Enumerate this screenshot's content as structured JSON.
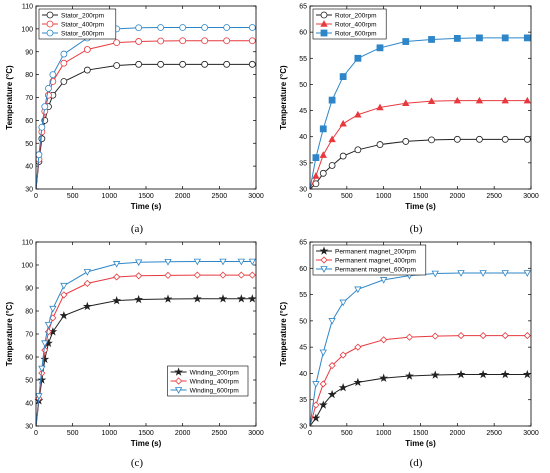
{
  "colors": {
    "s200": "#222222",
    "s400": "#e8393e",
    "s600": "#2e86c8"
  },
  "chart_data": [
    {
      "type": "line",
      "caption": "(a)",
      "xlabel": "Time (s)",
      "ylabel": "Temperature (°C)",
      "xlim": [
        0,
        3000
      ],
      "ylim": [
        30,
        110
      ],
      "xticks": [
        0,
        500,
        1000,
        1500,
        2000,
        2500,
        3000
      ],
      "yticks": [
        30,
        40,
        50,
        60,
        70,
        80,
        90,
        100,
        110
      ],
      "legend": "top-left",
      "marker": "circle",
      "series": [
        {
          "name": "Stator_200rpm",
          "values": [
            30,
            42,
            52,
            60,
            66,
            71,
            77,
            82,
            84,
            84.5,
            84.5,
            84.5,
            84.5,
            84.5,
            84.5
          ]
        },
        {
          "name": "Stator_400rpm",
          "values": [
            30,
            43,
            55,
            64,
            71,
            77,
            85,
            91,
            94,
            94.5,
            94.7,
            94.8,
            94.8,
            94.8,
            94.8
          ]
        },
        {
          "name": "Stator_600rpm",
          "values": [
            30,
            45,
            57,
            66,
            74,
            80,
            89,
            96,
            100,
            100.5,
            100.6,
            100.6,
            100.6,
            100.6,
            100.6
          ]
        }
      ],
      "x": [
        0,
        40,
        80,
        120,
        170,
        230,
        380,
        700,
        1100,
        1400,
        1700,
        2000,
        2300,
        2600,
        2950
      ]
    },
    {
      "type": "line",
      "caption": "(b)",
      "xlabel": "Time (s)",
      "ylabel": "Temperature (°C)",
      "xlim": [
        0,
        3000
      ],
      "ylim": [
        30,
        65
      ],
      "xticks": [
        0,
        500,
        1000,
        1500,
        2000,
        2500,
        3000
      ],
      "yticks": [
        30,
        35,
        40,
        45,
        50,
        55,
        60,
        65
      ],
      "legend": "top-left",
      "marker": "mixed",
      "series": [
        {
          "name": "Rotor_200rpm",
          "marker": "circle",
          "values": [
            30,
            31,
            33,
            34.5,
            36.3,
            37.5,
            38.5,
            39.1,
            39.4,
            39.5,
            39.5,
            39.5,
            39.5
          ]
        },
        {
          "name": "Rotor_400rpm",
          "marker": "triangle",
          "values": [
            30,
            32.5,
            36.5,
            39.5,
            42.5,
            44.2,
            45.6,
            46.4,
            46.8,
            46.9,
            46.9,
            46.9,
            46.9
          ]
        },
        {
          "name": "Rotor_600rpm",
          "marker": "square",
          "values": [
            30,
            36,
            41.5,
            47,
            51.5,
            55,
            57,
            58.2,
            58.6,
            58.8,
            58.9,
            58.9,
            58.9
          ]
        }
      ],
      "x": [
        0,
        80,
        180,
        300,
        450,
        650,
        950,
        1300,
        1650,
        2000,
        2300,
        2650,
        2950
      ]
    },
    {
      "type": "line",
      "caption": "(c)",
      "xlabel": "Time (s)",
      "ylabel": "Temperature (°C)",
      "xlim": [
        0,
        3000
      ],
      "ylim": [
        30,
        110
      ],
      "xticks": [
        0,
        500,
        1000,
        1500,
        2000,
        2500,
        3000
      ],
      "yticks": [
        30,
        40,
        50,
        60,
        70,
        80,
        90,
        100,
        110
      ],
      "legend": "bottom-right",
      "marker": "mixed",
      "series": [
        {
          "name": "Winding_200rpm",
          "marker": "star",
          "values": [
            30,
            41,
            50,
            59,
            66,
            71,
            78,
            82,
            84.5,
            85,
            85.2,
            85.3,
            85.3,
            85.3,
            85.3
          ]
        },
        {
          "name": "Winding_400rpm",
          "marker": "diamond",
          "values": [
            30,
            42,
            53,
            63,
            71,
            77,
            87,
            92,
            94.8,
            95.3,
            95.5,
            95.6,
            95.6,
            95.6,
            95.6
          ]
        },
        {
          "name": "Winding_600rpm",
          "marker": "triangle-down",
          "values": [
            30,
            43,
            55,
            66,
            74,
            81,
            91,
            97,
            100.5,
            101.2,
            101.4,
            101.5,
            101.5,
            101.5,
            101.5
          ]
        }
      ],
      "x": [
        0,
        40,
        80,
        120,
        170,
        230,
        380,
        700,
        1100,
        1400,
        1800,
        2200,
        2550,
        2800,
        2950
      ]
    },
    {
      "type": "line",
      "caption": "(d)",
      "xlabel": "Time (s)",
      "ylabel": "Temperature (°C)",
      "xlim": [
        0,
        3000
      ],
      "ylim": [
        30,
        65
      ],
      "xticks": [
        0,
        500,
        1000,
        1500,
        2000,
        2500,
        3000
      ],
      "yticks": [
        30,
        35,
        40,
        45,
        50,
        55,
        60,
        65
      ],
      "legend": "top-left",
      "marker": "mixed",
      "series": [
        {
          "name": "Permanent magnet_200rpm",
          "marker": "star",
          "values": [
            30,
            31.5,
            34,
            36,
            37.3,
            38.3,
            39.1,
            39.5,
            39.7,
            39.8,
            39.8,
            39.8,
            39.8
          ]
        },
        {
          "name": "Permanent magnet_400rpm",
          "marker": "diamond",
          "values": [
            30,
            34,
            38,
            41.5,
            43.5,
            45,
            46.4,
            46.9,
            47.1,
            47.2,
            47.2,
            47.2,
            47.2
          ]
        },
        {
          "name": "Permanent magnet_600rpm",
          "marker": "triangle-down",
          "values": [
            30,
            38,
            44,
            50,
            53.5,
            56,
            57.8,
            58.6,
            59,
            59.1,
            59.1,
            59.1,
            59.1
          ]
        }
      ],
      "x": [
        0,
        80,
        180,
        300,
        450,
        650,
        1000,
        1350,
        1700,
        2050,
        2350,
        2650,
        2950
      ]
    }
  ]
}
